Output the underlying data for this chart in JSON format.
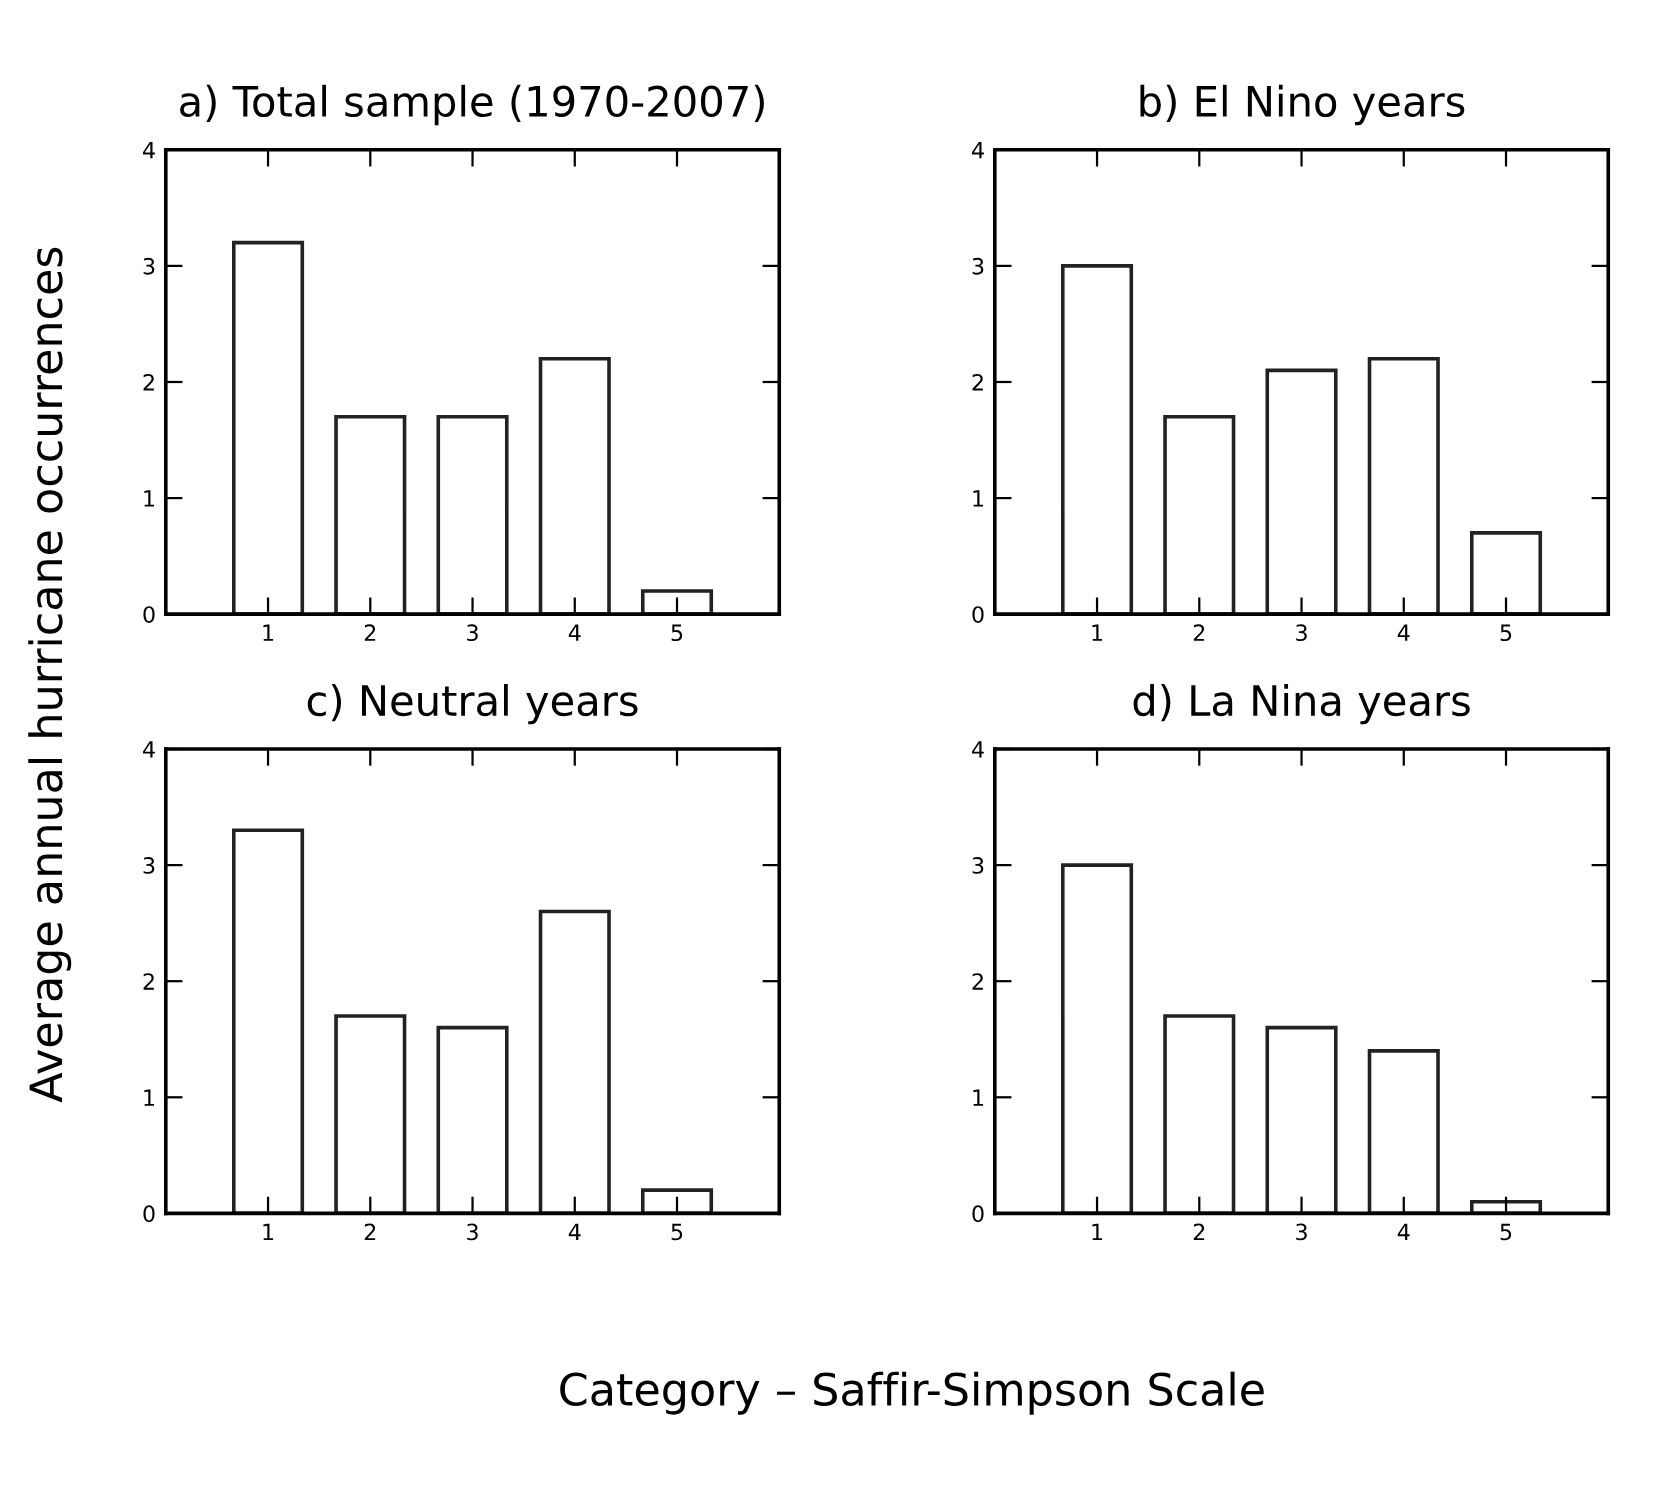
{
  "chart_data": [
    {
      "type": "bar",
      "title": "a) Total sample (1970-2007)",
      "ylabel": "Average annual hurricane occurrences",
      "x": [
        1,
        2,
        3,
        4,
        5
      ],
      "values": [
        3.2,
        1.7,
        1.7,
        2.2,
        0.2
      ],
      "color": "#ffffff",
      "xlim": [
        0,
        6
      ],
      "xticks": [
        1,
        2,
        3,
        4,
        5
      ],
      "ylim": [
        0,
        4
      ],
      "yticks": [
        0,
        1,
        2,
        3,
        4
      ],
      "grid": false
    },
    {
      "type": "bar",
      "title": "b) El Nino years",
      "x": [
        1,
        2,
        3,
        4,
        5
      ],
      "values": [
        3.0,
        1.7,
        2.1,
        2.2,
        0.7
      ],
      "color": "#ffffff",
      "xlim": [
        0,
        6
      ],
      "xticks": [
        1,
        2,
        3,
        4,
        5
      ],
      "ylim": [
        0,
        4
      ],
      "yticks": [
        0,
        1,
        2,
        3,
        4
      ],
      "grid": false
    },
    {
      "type": "bar",
      "title": "c) Neutral years",
      "xlabel": "Category – Saffir-Simpson Scale",
      "x": [
        1,
        2,
        3,
        4,
        5
      ],
      "values": [
        3.3,
        1.7,
        1.6,
        2.6,
        0.2
      ],
      "color": "#ffffff",
      "xlim": [
        0,
        6
      ],
      "xticks": [
        1,
        2,
        3,
        4,
        5
      ],
      "ylim": [
        0,
        4
      ],
      "yticks": [
        0,
        1,
        2,
        3,
        4
      ],
      "grid": false
    },
    {
      "type": "bar",
      "title": "d) La Nina years",
      "x": [
        1,
        2,
        3,
        4,
        5
      ],
      "values": [
        3.0,
        1.7,
        1.6,
        1.4,
        0.1
      ],
      "color": "#ffffff",
      "xlim": [
        0,
        6
      ],
      "xticks": [
        1,
        2,
        3,
        4,
        5
      ],
      "ylim": [
        0,
        4
      ],
      "yticks": [
        0,
        1,
        2,
        3,
        4
      ],
      "grid": false
    }
  ]
}
